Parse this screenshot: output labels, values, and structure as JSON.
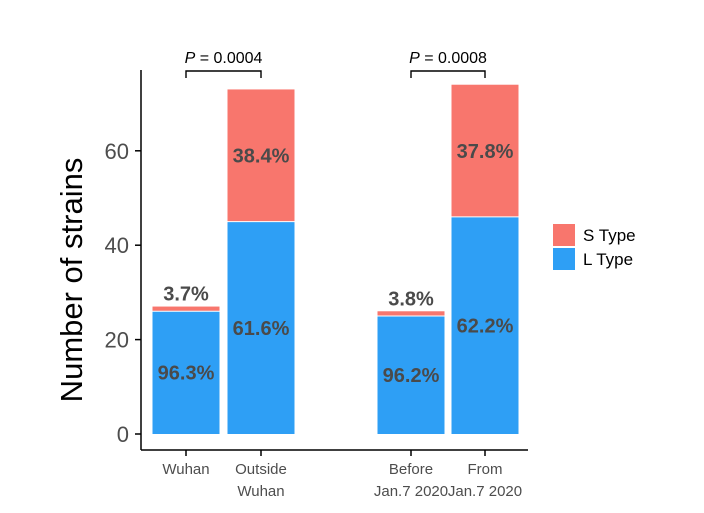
{
  "chart_data": {
    "type": "bar",
    "stacked": true,
    "ylabel": "Number of strains",
    "ylim": [
      0,
      75
    ],
    "yticks": [
      0,
      20,
      40,
      60
    ],
    "categories": [
      {
        "lines": [
          "Wuhan"
        ]
      },
      {
        "lines": [
          "Outside",
          "Wuhan"
        ]
      },
      {
        "lines": [
          "Before",
          "Jan.7 2020"
        ]
      },
      {
        "lines": [
          "From",
          "Jan.7 2020"
        ]
      }
    ],
    "series": [
      {
        "name": "L Type",
        "color": "#2e9ff5",
        "values": [
          26,
          45,
          25,
          46
        ],
        "labels": [
          "96.3%",
          "61.6%",
          "96.2%",
          "62.2%"
        ]
      },
      {
        "name": "S Type",
        "color": "#f8766d",
        "values": [
          1,
          28,
          1,
          28
        ],
        "labels": [
          "3.7%",
          "38.4%",
          "3.8%",
          "37.8%"
        ]
      }
    ],
    "comparisons": [
      {
        "from": 0,
        "to": 1,
        "p_letter": "P",
        "p_text": " = 0.0004"
      },
      {
        "from": 2,
        "to": 3,
        "p_letter": "P",
        "p_text": " = 0.0008"
      }
    ],
    "legend": {
      "position": "right",
      "items": [
        {
          "label": "S Type",
          "color": "#f8766d"
        },
        {
          "label": "L Type",
          "color": "#2e9ff5"
        }
      ]
    },
    "grid": false
  }
}
